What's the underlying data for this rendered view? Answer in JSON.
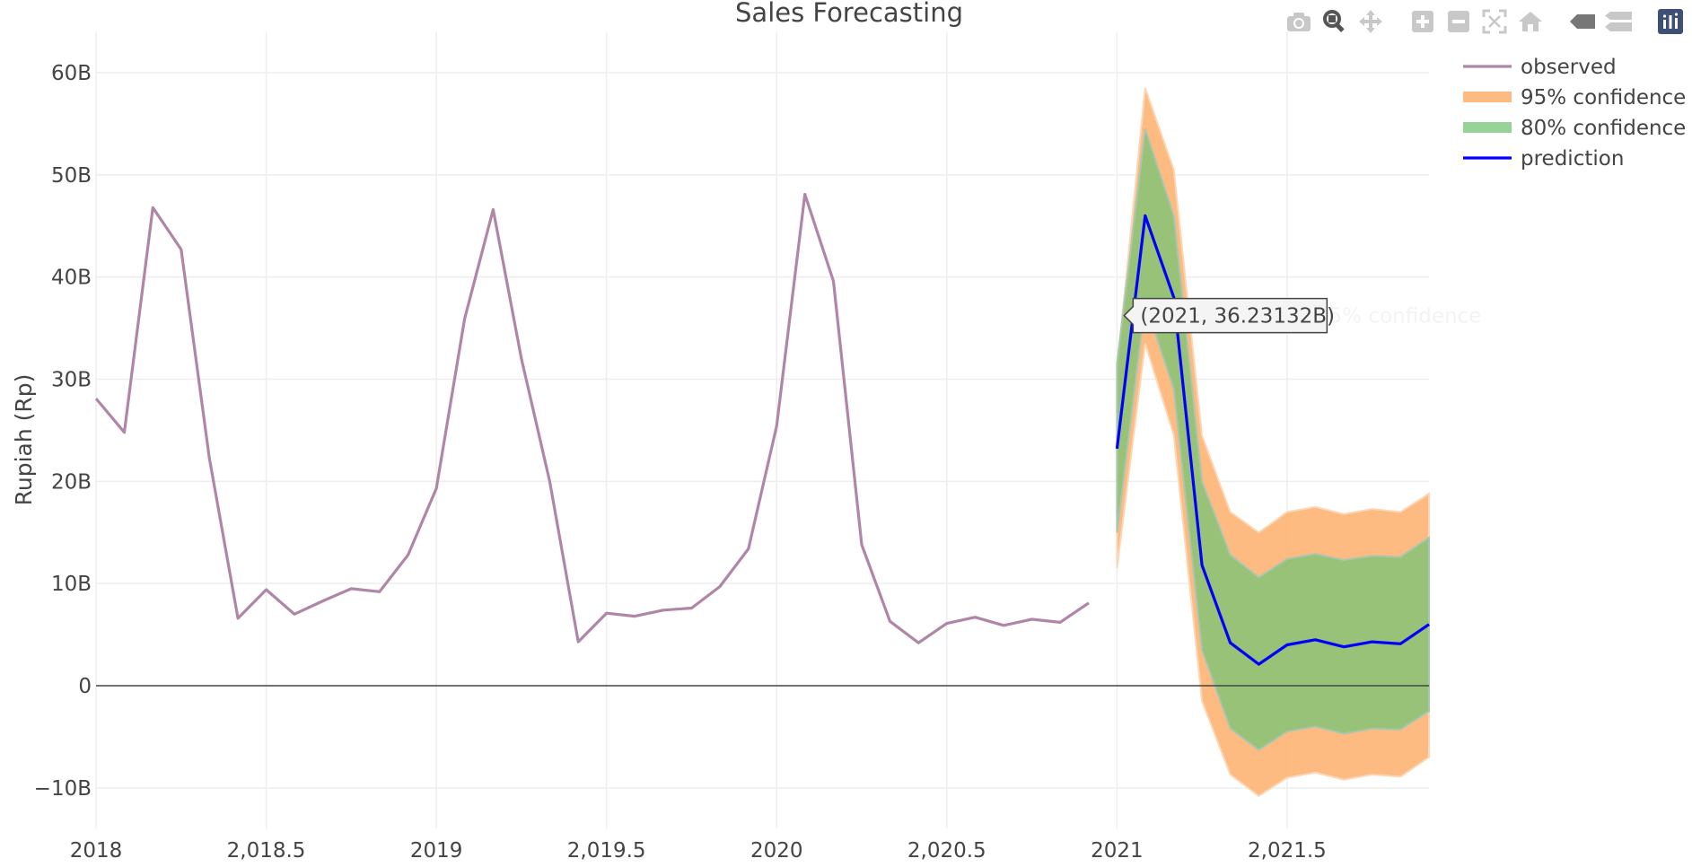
{
  "chart_data": {
    "type": "line",
    "title": "Sales Forecasting",
    "xlabel": "",
    "ylabel": "Rupiah (Rp)",
    "xlim": [
      2018,
      2021.917
    ],
    "ylim": [
      -14,
      64
    ],
    "y_unit": "B",
    "x_ticks": [
      2018,
      2018.5,
      2019,
      2019.5,
      2020,
      2020.5,
      2021,
      2021.5
    ],
    "x_tick_labels": [
      "2018",
      "2,018.5",
      "2019",
      "2,019.5",
      "2020",
      "2,020.5",
      "2021",
      "2,021.5"
    ],
    "y_ticks": [
      -10,
      0,
      10,
      20,
      30,
      40,
      50,
      60
    ],
    "y_tick_labels": [
      "−10B",
      "0",
      "10B",
      "20B",
      "30B",
      "40B",
      "50B",
      "60B"
    ],
    "grid": true,
    "legend_position": "top-right",
    "series": [
      {
        "name": "observed",
        "color": "#b086a8",
        "x": [
          2018.0,
          2018.083,
          2018.167,
          2018.25,
          2018.333,
          2018.417,
          2018.5,
          2018.583,
          2018.667,
          2018.75,
          2018.833,
          2018.917,
          2019.0,
          2019.083,
          2019.167,
          2019.25,
          2019.333,
          2019.417,
          2019.5,
          2019.583,
          2019.667,
          2019.75,
          2019.833,
          2019.917,
          2020.0,
          2020.083,
          2020.167,
          2020.25,
          2020.333,
          2020.417,
          2020.5,
          2020.583,
          2020.667,
          2020.75,
          2020.833,
          2020.917
        ],
        "y": [
          28.1,
          24.8,
          46.8,
          42.7,
          22.3,
          6.6,
          9.4,
          7.0,
          8.3,
          9.5,
          9.2,
          12.8,
          19.3,
          35.9,
          46.6,
          32.0,
          20.0,
          4.3,
          7.1,
          6.8,
          7.4,
          7.6,
          9.7,
          13.4,
          25.4,
          48.1,
          39.6,
          13.8,
          6.3,
          4.2,
          6.1,
          6.7,
          5.9,
          6.5,
          6.2,
          8.1
        ]
      },
      {
        "name": "95% confidence",
        "color": "#fdae6b",
        "x": [
          2021.0,
          2021.083,
          2021.167,
          2021.25,
          2021.333,
          2021.417,
          2021.5,
          2021.583,
          2021.667,
          2021.75,
          2021.833,
          2021.917
        ],
        "upper": [
          31.0,
          58.5,
          50.5,
          24.5,
          17.0,
          15.0,
          17.0,
          17.5,
          16.8,
          17.3,
          17.0,
          18.8
        ],
        "lower": [
          11.5,
          33.5,
          24.5,
          -1.5,
          -8.7,
          -10.8,
          -9.0,
          -8.5,
          -9.2,
          -8.7,
          -8.9,
          -7.0
        ]
      },
      {
        "name": "80% confidence",
        "color": "#74c476",
        "x": [
          2021.0,
          2021.083,
          2021.167,
          2021.25,
          2021.333,
          2021.417,
          2021.5,
          2021.583,
          2021.667,
          2021.75,
          2021.833,
          2021.917
        ],
        "upper": [
          31.5,
          54.5,
          46.0,
          20.0,
          12.8,
          10.6,
          12.4,
          12.9,
          12.3,
          12.7,
          12.6,
          14.5
        ],
        "lower": [
          15.0,
          37.5,
          29.0,
          3.5,
          -4.2,
          -6.3,
          -4.5,
          -4.0,
          -4.7,
          -4.2,
          -4.3,
          -2.5
        ]
      },
      {
        "name": "prediction",
        "color": "#0000ff",
        "x": [
          2021.0,
          2021.083,
          2021.167,
          2021.25,
          2021.333,
          2021.417,
          2021.5,
          2021.583,
          2021.667,
          2021.75,
          2021.833,
          2021.917
        ],
        "y": [
          23.2,
          46.0,
          38.0,
          11.8,
          4.2,
          2.1,
          4.0,
          4.5,
          3.8,
          4.3,
          4.1,
          6.0
        ]
      }
    ],
    "hover": {
      "text": "(2021, 36.23132B)",
      "ghost_label": "95% confidence",
      "x": 2021.0,
      "y": 36.23132
    }
  },
  "modebar": {
    "icons": [
      "camera-icon",
      "zoom-icon",
      "pan-icon",
      "zoom-in-icon",
      "zoom-out-icon",
      "autoscale-icon",
      "reset-axes-icon",
      "spike-lines-icon",
      "compare-hover-icon",
      "plotly-logo-icon"
    ]
  }
}
